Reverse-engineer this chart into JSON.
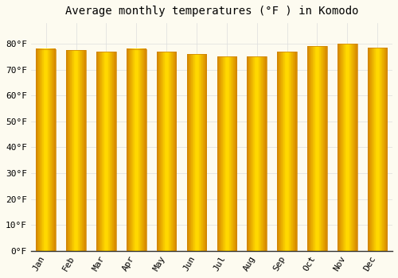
{
  "title": "Average monthly temperatures (°F ) in Komodo",
  "months": [
    "Jan",
    "Feb",
    "Mar",
    "Apr",
    "May",
    "Jun",
    "Jul",
    "Aug",
    "Sep",
    "Oct",
    "Nov",
    "Dec"
  ],
  "values": [
    78,
    77.5,
    77,
    78,
    77,
    76,
    75,
    75,
    77,
    79,
    80,
    78.5
  ],
  "bar_color": "#FFA500",
  "bar_edge_color": "#CC8000",
  "gradient_light": "#FFD070",
  "background_color": "#FDFBF0",
  "grid_color": "#DDDDDD",
  "ylim": [
    0,
    88
  ],
  "yticks": [
    0,
    10,
    20,
    30,
    40,
    50,
    60,
    70,
    80
  ],
  "ytick_labels": [
    "0°F",
    "10°F",
    "20°F",
    "30°F",
    "40°F",
    "50°F",
    "60°F",
    "70°F",
    "80°F"
  ],
  "title_fontsize": 10,
  "tick_fontsize": 8,
  "font_family": "monospace",
  "bar_width": 0.65
}
